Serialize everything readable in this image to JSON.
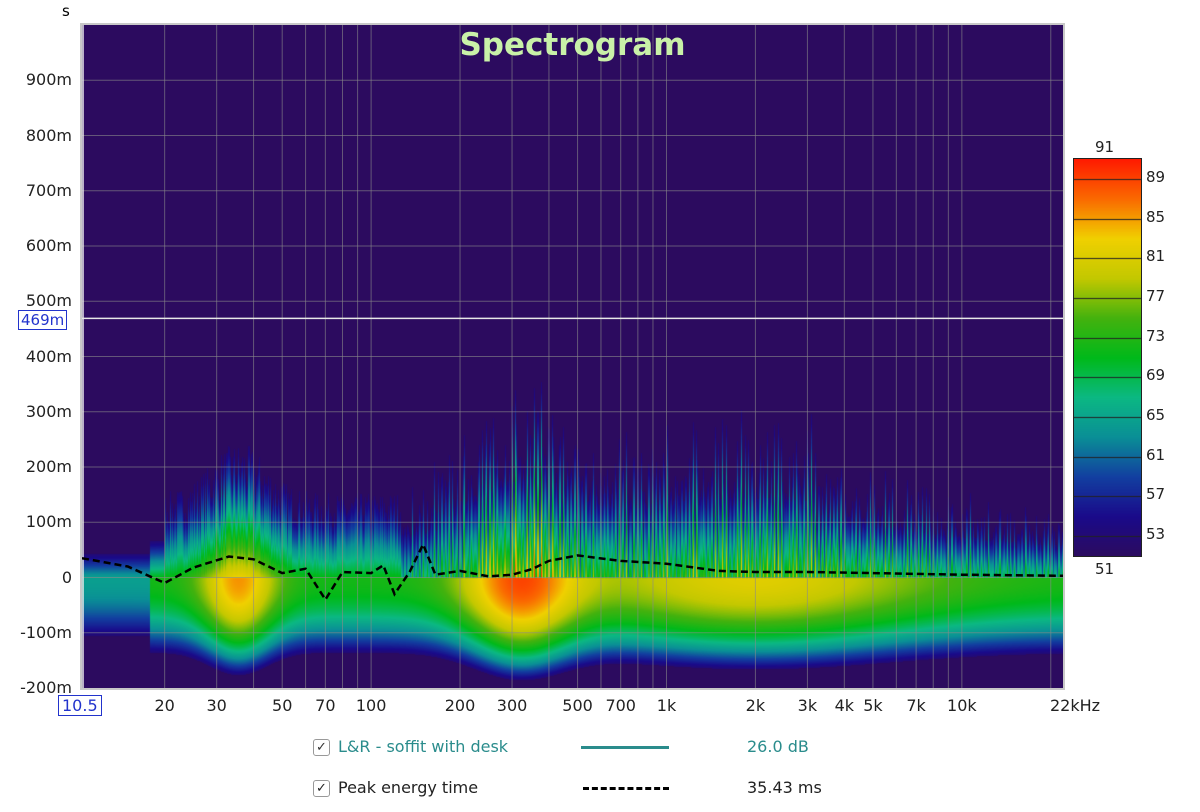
{
  "chart_data": {
    "type": "heatmap",
    "title": "Spectrogram",
    "ylabel": "s",
    "xunit": "kHz",
    "xscale": "log",
    "xlim": [
      10.5,
      22000
    ],
    "ylim_ms": [
      -200,
      1000
    ],
    "grid": true,
    "yticks": [
      "900m",
      "800m",
      "700m",
      "600m",
      "500m",
      "400m",
      "300m",
      "200m",
      "100m",
      "0",
      "-100m",
      "-200m"
    ],
    "ytick_values_ms": [
      900,
      800,
      700,
      600,
      500,
      400,
      300,
      200,
      100,
      0,
      -100,
      -200
    ],
    "xticks": [
      "20",
      "30",
      "50",
      "70",
      "100",
      "200",
      "300",
      "500",
      "700",
      "1k",
      "2k",
      "3k",
      "4k",
      "5k",
      "7k",
      "10k",
      "22kHz"
    ],
    "xtick_values_hz": [
      20,
      30,
      50,
      70,
      100,
      200,
      300,
      500,
      700,
      1000,
      2000,
      3000,
      4000,
      5000,
      7000,
      10000,
      22000
    ],
    "cursor": {
      "y_label": "469m",
      "y_ms": 469,
      "x_label": "10.5"
    },
    "colorbar": {
      "min": 51,
      "max": 91,
      "labels": [
        "89",
        "85",
        "81",
        "77",
        "73",
        "69",
        "65",
        "61",
        "57",
        "53"
      ],
      "min_label": "51",
      "max_label": "91",
      "colors": [
        "#2c0b5f",
        "#1a0a8a",
        "#123fa0",
        "#0a8f96",
        "#0bb883",
        "#00b91a",
        "#44b20e",
        "#c3c800",
        "#f0d000",
        "#fa6a00",
        "#ff1a00"
      ]
    },
    "series": [
      {
        "name": "L&R - soffit with desk",
        "value": "26.0 dB",
        "color": "#2a8c8c"
      },
      {
        "name": "Peak energy time",
        "value": "35.43 ms",
        "color": "#000000",
        "style": "dashed",
        "points": [
          [
            10.5,
            35
          ],
          [
            15,
            20
          ],
          [
            20,
            -10
          ],
          [
            25,
            18
          ],
          [
            33,
            38
          ],
          [
            40,
            33
          ],
          [
            50,
            8
          ],
          [
            60,
            16
          ],
          [
            70,
            -40
          ],
          [
            80,
            10
          ],
          [
            100,
            8
          ],
          [
            110,
            22
          ],
          [
            120,
            -30
          ],
          [
            135,
            10
          ],
          [
            150,
            60
          ],
          [
            165,
            5
          ],
          [
            200,
            12
          ],
          [
            250,
            2
          ],
          [
            300,
            5
          ],
          [
            350,
            15
          ],
          [
            400,
            30
          ],
          [
            500,
            40
          ],
          [
            700,
            30
          ],
          [
            1000,
            25
          ],
          [
            1500,
            12
          ],
          [
            2000,
            10
          ],
          [
            3000,
            10
          ],
          [
            5000,
            8
          ],
          [
            10000,
            5
          ],
          [
            22000,
            3
          ]
        ]
      }
    ]
  }
}
